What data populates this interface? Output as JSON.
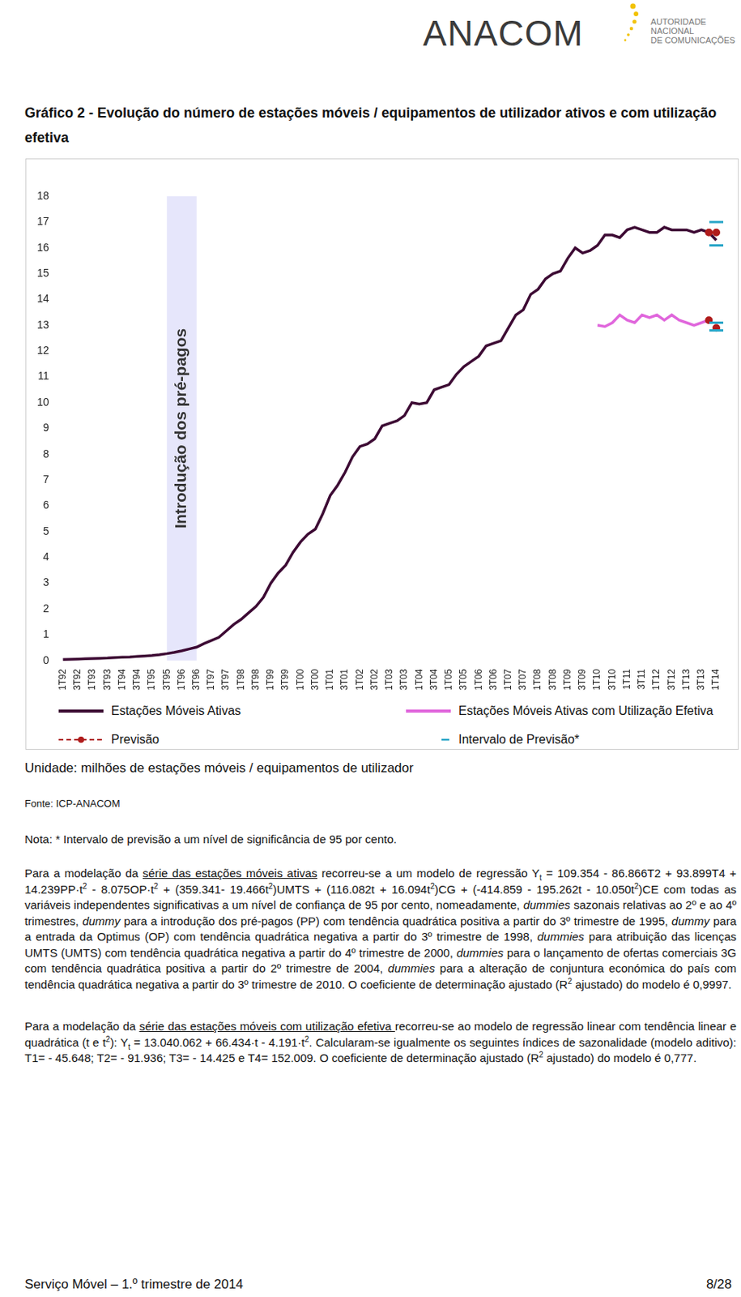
{
  "header": {
    "logo": "ANACOM",
    "logo_subtitle": [
      "AUTORIDADE",
      "NACIONAL",
      "DE COMUNICAÇÕES"
    ]
  },
  "chart_data": {
    "type": "line",
    "title": "Gráfico 2 - Evolução do número de estações móveis / equipamentos de utilizador ativos e com utilização efetiva",
    "categories": [
      "1T92",
      null,
      "3T92",
      null,
      "1T93",
      null,
      "3T93",
      null,
      "1T94",
      null,
      "3T94",
      null,
      "1T95",
      null,
      "3T95",
      null,
      "1T96",
      null,
      "3T96",
      null,
      "1T97",
      null,
      "3T97",
      null,
      "1T98",
      null,
      "3T98",
      null,
      "1T99",
      null,
      "3T99",
      null,
      "1T00",
      null,
      "3T00",
      null,
      "1T01",
      null,
      "3T01",
      null,
      "1T02",
      null,
      "3T02",
      null,
      "1T03",
      null,
      "3T03",
      null,
      "1T04",
      null,
      "3T04",
      null,
      "1T05",
      null,
      "3T05",
      null,
      "1T06",
      null,
      "3T06",
      null,
      "1T07",
      null,
      "3T07",
      null,
      "1T08",
      null,
      "3T08",
      null,
      "1T09",
      null,
      "3T09",
      null,
      "1T10",
      null,
      "3T10",
      null,
      "1T11",
      null,
      "3T11",
      null,
      "1T12",
      null,
      "3T12",
      null,
      "1T13",
      null,
      "3T13",
      null,
      "1T14"
    ],
    "series": [
      {
        "name": "Estações Móveis Ativas",
        "color": "#3d0a34",
        "line_style": "solid",
        "values": [
          0.04,
          0.05,
          0.06,
          0.07,
          0.08,
          0.09,
          0.1,
          0.12,
          0.13,
          0.14,
          0.16,
          0.18,
          0.2,
          0.23,
          0.27,
          0.32,
          0.38,
          0.45,
          0.52,
          0.66,
          0.78,
          0.9,
          1.15,
          1.4,
          1.6,
          1.85,
          2.1,
          2.45,
          3.0,
          3.4,
          3.7,
          4.2,
          4.6,
          4.9,
          5.1,
          5.7,
          6.4,
          6.8,
          7.3,
          7.9,
          8.3,
          8.4,
          8.6,
          9.1,
          9.2,
          9.3,
          9.5,
          10.0,
          9.95,
          10.0,
          10.5,
          10.6,
          10.7,
          11.1,
          11.4,
          11.6,
          11.8,
          12.2,
          12.3,
          12.4,
          12.9,
          13.4,
          13.6,
          14.2,
          14.4,
          14.8,
          15.0,
          15.1,
          15.6,
          16.0,
          15.8,
          15.9,
          16.1,
          16.5,
          16.5,
          16.4,
          16.7,
          16.8,
          16.7,
          16.6,
          16.6,
          16.8,
          16.7,
          16.7,
          16.7,
          16.6,
          16.7,
          16.6,
          16.3
        ]
      },
      {
        "name": "Estações Móveis Ativas com Utilização Efetiva",
        "color": "#e066dc",
        "line_style": "solid",
        "values": [
          null,
          null,
          null,
          null,
          null,
          null,
          null,
          null,
          null,
          null,
          null,
          null,
          null,
          null,
          null,
          null,
          null,
          null,
          null,
          null,
          null,
          null,
          null,
          null,
          null,
          null,
          null,
          null,
          null,
          null,
          null,
          null,
          null,
          null,
          null,
          null,
          null,
          null,
          null,
          null,
          null,
          null,
          null,
          null,
          null,
          null,
          null,
          null,
          null,
          null,
          null,
          null,
          null,
          null,
          null,
          null,
          null,
          null,
          null,
          null,
          null,
          null,
          null,
          null,
          null,
          null,
          null,
          null,
          null,
          null,
          null,
          null,
          13.0,
          12.95,
          13.1,
          13.4,
          13.2,
          13.1,
          13.4,
          13.3,
          13.4,
          13.2,
          13.4,
          13.2,
          13.1,
          13.0,
          13.1,
          13.2,
          null
        ]
      },
      {
        "name": "Previsão",
        "color": "#b01c1c",
        "line_style": "dashed",
        "marker": "circle",
        "values": [
          null,
          null,
          null,
          null,
          null,
          null,
          null,
          null,
          null,
          null,
          null,
          null,
          null,
          null,
          null,
          null,
          null,
          null,
          null,
          null,
          null,
          null,
          null,
          null,
          null,
          null,
          null,
          null,
          null,
          null,
          null,
          null,
          null,
          null,
          null,
          null,
          null,
          null,
          null,
          null,
          null,
          null,
          null,
          null,
          null,
          null,
          null,
          null,
          null,
          null,
          null,
          null,
          null,
          null,
          null,
          null,
          null,
          null,
          null,
          null,
          null,
          null,
          null,
          null,
          null,
          null,
          null,
          null,
          null,
          null,
          null,
          null,
          null,
          null,
          null,
          null,
          null,
          null,
          null,
          null,
          null,
          null,
          null,
          null,
          null,
          null,
          null,
          16.6,
          16.6
        ],
        "lower": [
          null,
          null,
          null,
          null,
          null,
          null,
          null,
          null,
          null,
          null,
          null,
          null,
          null,
          null,
          null,
          null,
          null,
          null,
          null,
          null,
          null,
          null,
          null,
          null,
          null,
          null,
          null,
          null,
          null,
          null,
          null,
          null,
          null,
          null,
          null,
          null,
          null,
          null,
          null,
          null,
          null,
          null,
          null,
          null,
          null,
          null,
          null,
          null,
          null,
          null,
          null,
          null,
          null,
          null,
          null,
          null,
          null,
          null,
          null,
          null,
          null,
          null,
          null,
          null,
          null,
          null,
          null,
          null,
          null,
          null,
          null,
          null,
          null,
          null,
          null,
          null,
          null,
          null,
          null,
          null,
          null,
          null,
          null,
          null,
          null,
          null,
          null,
          null,
          16.1
        ],
        "upper": [
          null,
          null,
          null,
          null,
          null,
          null,
          null,
          null,
          null,
          null,
          null,
          null,
          null,
          null,
          null,
          null,
          null,
          null,
          null,
          null,
          null,
          null,
          null,
          null,
          null,
          null,
          null,
          null,
          null,
          null,
          null,
          null,
          null,
          null,
          null,
          null,
          null,
          null,
          null,
          null,
          null,
          null,
          null,
          null,
          null,
          null,
          null,
          null,
          null,
          null,
          null,
          null,
          null,
          null,
          null,
          null,
          null,
          null,
          null,
          null,
          null,
          null,
          null,
          null,
          null,
          null,
          null,
          null,
          null,
          null,
          null,
          null,
          null,
          null,
          null,
          null,
          null,
          null,
          null,
          null,
          null,
          null,
          null,
          null,
          null,
          null,
          null,
          null,
          17.0
        ]
      },
      {
        "name": "Previsão",
        "color": "#b01c1c",
        "line_style": "dashed",
        "marker": "circle",
        "values": [
          null,
          null,
          null,
          null,
          null,
          null,
          null,
          null,
          null,
          null,
          null,
          null,
          null,
          null,
          null,
          null,
          null,
          null,
          null,
          null,
          null,
          null,
          null,
          null,
          null,
          null,
          null,
          null,
          null,
          null,
          null,
          null,
          null,
          null,
          null,
          null,
          null,
          null,
          null,
          null,
          null,
          null,
          null,
          null,
          null,
          null,
          null,
          null,
          null,
          null,
          null,
          null,
          null,
          null,
          null,
          null,
          null,
          null,
          null,
          null,
          null,
          null,
          null,
          null,
          null,
          null,
          null,
          null,
          null,
          null,
          null,
          null,
          null,
          null,
          null,
          null,
          null,
          null,
          null,
          null,
          null,
          null,
          null,
          null,
          null,
          null,
          null,
          13.2,
          12.9
        ],
        "lower": [
          null,
          null,
          null,
          null,
          null,
          null,
          null,
          null,
          null,
          null,
          null,
          null,
          null,
          null,
          null,
          null,
          null,
          null,
          null,
          null,
          null,
          null,
          null,
          null,
          null,
          null,
          null,
          null,
          null,
          null,
          null,
          null,
          null,
          null,
          null,
          null,
          null,
          null,
          null,
          null,
          null,
          null,
          null,
          null,
          null,
          null,
          null,
          null,
          null,
          null,
          null,
          null,
          null,
          null,
          null,
          null,
          null,
          null,
          null,
          null,
          null,
          null,
          null,
          null,
          null,
          null,
          null,
          null,
          null,
          null,
          null,
          null,
          null,
          null,
          null,
          null,
          null,
          null,
          null,
          null,
          null,
          null,
          null,
          null,
          null,
          null,
          null,
          null,
          12.8
        ],
        "upper": [
          null,
          null,
          null,
          null,
          null,
          null,
          null,
          null,
          null,
          null,
          null,
          null,
          null,
          null,
          null,
          null,
          null,
          null,
          null,
          null,
          null,
          null,
          null,
          null,
          null,
          null,
          null,
          null,
          null,
          null,
          null,
          null,
          null,
          null,
          null,
          null,
          null,
          null,
          null,
          null,
          null,
          null,
          null,
          null,
          null,
          null,
          null,
          null,
          null,
          null,
          null,
          null,
          null,
          null,
          null,
          null,
          null,
          null,
          null,
          null,
          null,
          null,
          null,
          null,
          null,
          null,
          null,
          null,
          null,
          null,
          null,
          null,
          null,
          null,
          null,
          null,
          null,
          null,
          null,
          null,
          null,
          null,
          null,
          null,
          null,
          null,
          null,
          null,
          13.1
        ]
      }
    ],
    "interval": {
      "name": "Intervalo de Previsão*",
      "color": "#2aa6c8",
      "marker": "dash"
    },
    "band": {
      "label": "Introdução dos pré-pagos",
      "from": "3T95",
      "to": "3T96"
    },
    "ylim": [
      0,
      18
    ],
    "yticks": [
      0,
      1,
      2,
      3,
      4,
      5,
      6,
      7,
      8,
      9,
      10,
      11,
      12,
      13,
      14,
      15,
      16,
      17,
      18
    ],
    "grid": false,
    "legend": "bottom"
  },
  "unit": "Unidade: milhões de estações móveis / equipamentos de utilizador",
  "source": "Fonte: ICP-ANACOM",
  "note": "Nota: * Intervalo de previsão a um nível de significância de 95 por cento.",
  "paragraphs": [
    [
      {
        "text": "Para a modelação da "
      },
      {
        "text": "série das estações móveis ativas",
        "style": "u"
      },
      {
        "text": " recorreu-se a um modelo de regressão Y"
      },
      {
        "text": "t",
        "style": "sub"
      },
      {
        "text": " = 109.354 - 86.866T2 + 93.899T4 + 14.239PP·t"
      },
      {
        "text": "2",
        "style": "sup"
      },
      {
        "text": " - 8.075OP·t"
      },
      {
        "text": "2",
        "style": "sup"
      },
      {
        "text": " + (359.341- 19.466t"
      },
      {
        "text": "2",
        "style": "sup"
      },
      {
        "text": ")UMTS + (116.082t + 16.094t"
      },
      {
        "text": "2",
        "style": "sup"
      },
      {
        "text": ")CG + (-414.859 - 195.262t - 10.050t"
      },
      {
        "text": "2",
        "style": "sup"
      },
      {
        "text": ")CE com todas as variáveis independentes significativas a um nível de confiança de 95 por cento, nomeadamente, "
      },
      {
        "text": "dummies",
        "style": "i"
      },
      {
        "text": " sazonais relativas ao 2º e ao 4º trimestres, "
      },
      {
        "text": "dummy",
        "style": "i"
      },
      {
        "text": " para a introdução dos pré-pagos (PP) com tendência quadrática positiva a partir do 3º trimestre de 1995, "
      },
      {
        "text": "dummy",
        "style": "i"
      },
      {
        "text": " para a entrada da Optimus (OP) com tendência quadrática negativa a partir do 3º trimestre de 1998, "
      },
      {
        "text": "dummies",
        "style": "i"
      },
      {
        "text": " para atribuição das licenças UMTS (UMTS) com tendência quadrática negativa a partir do 4º trimestre de 2000, "
      },
      {
        "text": "dummies",
        "style": "i"
      },
      {
        "text": " para o lançamento de ofertas comerciais 3G com tendência quadrática positiva a partir do 2º trimestre de 2004, "
      },
      {
        "text": "dummies",
        "style": "i"
      },
      {
        "text": " para a alteração de conjuntura económica do país com tendência quadrática negativa a partir do 3º trimestre de 2010. O coeficiente de determinação ajustado (R"
      },
      {
        "text": "2",
        "style": "sup"
      },
      {
        "text": " ajustado) do modelo é 0,9997."
      }
    ],
    [
      {
        "text": "Para a modelação da "
      },
      {
        "text": "série das estações móveis com utilização efetiva ",
        "style": "u"
      },
      {
        "text": "recorreu-se ao modelo de regressão linear com tendência linear e quadrática (t e t"
      },
      {
        "text": "2",
        "style": "sup"
      },
      {
        "text": "): Y"
      },
      {
        "text": "t",
        "style": "sub"
      },
      {
        "text": " = 13.040.062 + 66.434·t - 4.191·t"
      },
      {
        "text": "2",
        "style": "sup"
      },
      {
        "text": ". Calcularam-se igualmente os seguintes índices de sazonalidade (modelo aditivo): T1= - 45.648; T2= - 91.936; T3= - 14.425 e T4= 152.009. O coeficiente de determinação ajustado (R"
      },
      {
        "text": "2",
        "style": "sup"
      },
      {
        "text": " ajustado) do modelo é 0,777."
      }
    ]
  ],
  "footer": {
    "left": "Serviço Móvel – 1.º trimestre de 2014",
    "right": "8/28"
  }
}
